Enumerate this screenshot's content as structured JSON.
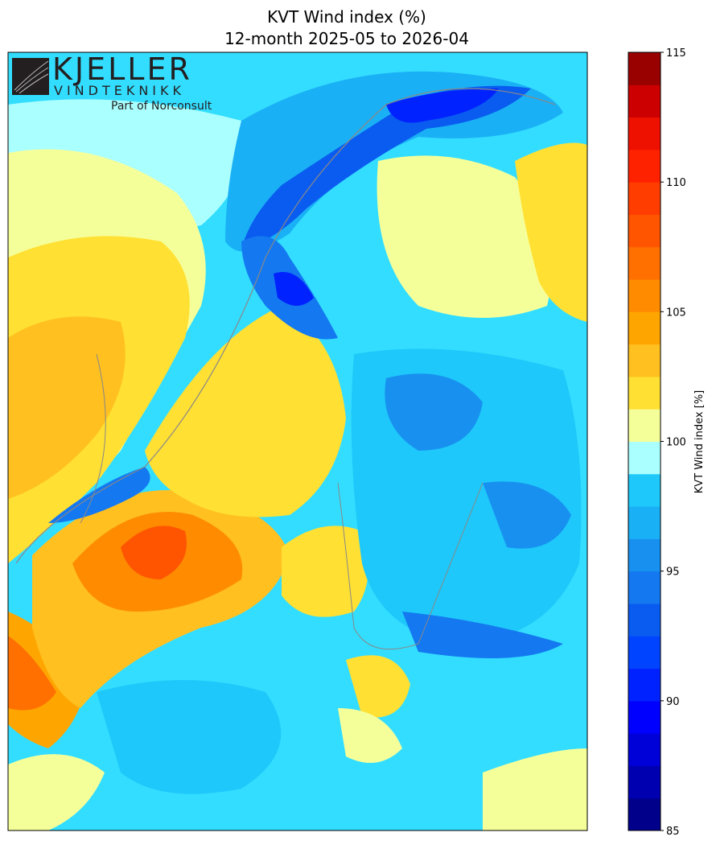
{
  "title": "KVT Wind index (%)",
  "subtitle": "12-month 2025-05 to 2026-04",
  "logo": {
    "name": "KJELLER",
    "tagline": "VINDTEKNIKK",
    "note": "Part of Norconsult"
  },
  "colorbar": {
    "label": "KVT Wind index [%]",
    "levels": [
      85,
      86.25,
      87.5,
      88.75,
      90,
      91.25,
      92.5,
      93.75,
      95,
      96.25,
      97.5,
      98.75,
      100,
      101.25,
      102.5,
      103.75,
      105,
      106.25,
      107.5,
      108.75,
      110,
      111.25,
      112.5,
      113.75,
      115
    ],
    "colors": [
      "#00008b",
      "#0000b0",
      "#0000d8",
      "#0000ff",
      "#0022ff",
      "#0044ff",
      "#0a5cf0",
      "#1478f0",
      "#1890f0",
      "#1ab0f5",
      "#1ec8fa",
      "#aaffff",
      "#f5ff9a",
      "#ffe033",
      "#ffc020",
      "#ffa500",
      "#ff8c00",
      "#ff7000",
      "#ff5500",
      "#ff3d00",
      "#ff2200",
      "#ee1100",
      "#cc0000",
      "#990000"
    ],
    "ticks": [
      85,
      90,
      95,
      100,
      105,
      110,
      115
    ]
  }
}
